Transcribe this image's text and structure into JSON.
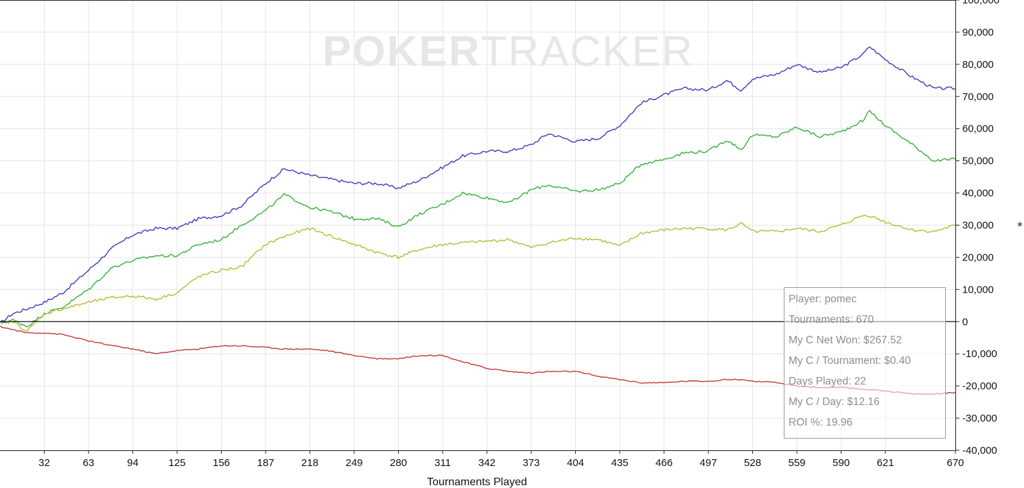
{
  "watermark": {
    "bold": "POKER",
    "light": "TRACKER"
  },
  "stats": [
    "Player: pomec",
    "Tournaments: 670",
    "My C Net Won: $267.52",
    "My C / Tournament: $0.40",
    "Days Played: 22",
    "My C / Day: $12.16",
    "ROI %: 19.96"
  ],
  "right_marker": "*",
  "chart_data": {
    "type": "line",
    "xlabel": "Tournaments Played",
    "ylabel": "",
    "xlim": [
      1,
      670
    ],
    "ylim": [
      -40000,
      100000
    ],
    "x_ticks": [
      32,
      63,
      94,
      125,
      156,
      187,
      218,
      249,
      280,
      311,
      342,
      373,
      404,
      435,
      466,
      497,
      528,
      559,
      590,
      621,
      670
    ],
    "y_ticks": [
      -40000,
      -30000,
      -20000,
      -10000,
      0,
      10000,
      20000,
      30000,
      40000,
      50000,
      60000,
      70000,
      80000,
      90000,
      100000
    ],
    "y_tick_labels": [
      "-40,000",
      "-30,000",
      "-20,000",
      "-10,000",
      "0",
      "10,000",
      "20,000",
      "30,000",
      "40,000",
      "50,000",
      "60,000",
      "70,000",
      "80,000",
      "90,000",
      "100,000"
    ],
    "grid": true,
    "zero_line": true,
    "series": [
      {
        "color": "#3a3ab8",
        "points": [
          [
            1,
            -500
          ],
          [
            10,
            2500
          ],
          [
            20,
            4000
          ],
          [
            32,
            6000
          ],
          [
            45,
            9000
          ],
          [
            63,
            16000
          ],
          [
            80,
            23000
          ],
          [
            94,
            27000
          ],
          [
            110,
            29000
          ],
          [
            125,
            29000
          ],
          [
            140,
            32000
          ],
          [
            156,
            33000
          ],
          [
            170,
            36000
          ],
          [
            187,
            43000
          ],
          [
            200,
            47500
          ],
          [
            218,
            45500
          ],
          [
            230,
            44500
          ],
          [
            249,
            43000
          ],
          [
            265,
            43000
          ],
          [
            280,
            41500
          ],
          [
            295,
            44000
          ],
          [
            311,
            48000
          ],
          [
            325,
            51500
          ],
          [
            342,
            53000
          ],
          [
            358,
            53000
          ],
          [
            373,
            55000
          ],
          [
            385,
            58500
          ],
          [
            404,
            56000
          ],
          [
            420,
            57000
          ],
          [
            435,
            61000
          ],
          [
            450,
            68000
          ],
          [
            466,
            70500
          ],
          [
            480,
            72500
          ],
          [
            497,
            72000
          ],
          [
            510,
            75000
          ],
          [
            520,
            72000
          ],
          [
            528,
            75500
          ],
          [
            545,
            77000
          ],
          [
            559,
            80000
          ],
          [
            575,
            77500
          ],
          [
            590,
            79000
          ],
          [
            605,
            83000
          ],
          [
            610,
            85500
          ],
          [
            621,
            81500
          ],
          [
            640,
            76000
          ],
          [
            655,
            72500
          ],
          [
            670,
            72500
          ]
        ]
      },
      {
        "color": "#34b034",
        "points": [
          [
            1,
            -500
          ],
          [
            10,
            500
          ],
          [
            20,
            -1500
          ],
          [
            32,
            2500
          ],
          [
            45,
            4500
          ],
          [
            63,
            10000
          ],
          [
            80,
            17000
          ],
          [
            94,
            19000
          ],
          [
            110,
            20500
          ],
          [
            125,
            20500
          ],
          [
            140,
            24000
          ],
          [
            156,
            25500
          ],
          [
            170,
            30000
          ],
          [
            187,
            34500
          ],
          [
            200,
            39500
          ],
          [
            218,
            35500
          ],
          [
            230,
            34500
          ],
          [
            249,
            32000
          ],
          [
            265,
            32000
          ],
          [
            280,
            29500
          ],
          [
            295,
            33500
          ],
          [
            311,
            36500
          ],
          [
            325,
            40000
          ],
          [
            342,
            38500
          ],
          [
            358,
            37000
          ],
          [
            373,
            41000
          ],
          [
            385,
            42500
          ],
          [
            404,
            40500
          ],
          [
            420,
            41000
          ],
          [
            435,
            43000
          ],
          [
            450,
            49000
          ],
          [
            466,
            50500
          ],
          [
            480,
            52500
          ],
          [
            497,
            53000
          ],
          [
            510,
            56500
          ],
          [
            520,
            53500
          ],
          [
            528,
            58000
          ],
          [
            545,
            57500
          ],
          [
            559,
            60500
          ],
          [
            575,
            57500
          ],
          [
            590,
            59000
          ],
          [
            605,
            62500
          ],
          [
            610,
            65500
          ],
          [
            621,
            61000
          ],
          [
            640,
            55000
          ],
          [
            655,
            50000
          ],
          [
            670,
            50500
          ]
        ]
      },
      {
        "color": "#b8b836",
        "points": [
          [
            1,
            -500
          ],
          [
            10,
            0
          ],
          [
            20,
            -3000
          ],
          [
            32,
            2500
          ],
          [
            45,
            4000
          ],
          [
            63,
            6000
          ],
          [
            80,
            7500
          ],
          [
            94,
            8000
          ],
          [
            110,
            7000
          ],
          [
            125,
            9000
          ],
          [
            140,
            14000
          ],
          [
            156,
            16000
          ],
          [
            170,
            17000
          ],
          [
            187,
            24000
          ],
          [
            200,
            26500
          ],
          [
            218,
            29000
          ],
          [
            230,
            27000
          ],
          [
            249,
            24000
          ],
          [
            265,
            21500
          ],
          [
            280,
            20000
          ],
          [
            295,
            22500
          ],
          [
            311,
            24000
          ],
          [
            325,
            24500
          ],
          [
            342,
            25000
          ],
          [
            358,
            25500
          ],
          [
            373,
            23000
          ],
          [
            385,
            24500
          ],
          [
            404,
            26000
          ],
          [
            420,
            25500
          ],
          [
            435,
            23500
          ],
          [
            450,
            27500
          ],
          [
            466,
            28500
          ],
          [
            480,
            29000
          ],
          [
            497,
            29000
          ],
          [
            510,
            28500
          ],
          [
            520,
            30500
          ],
          [
            528,
            28000
          ],
          [
            545,
            28000
          ],
          [
            559,
            29000
          ],
          [
            575,
            28000
          ],
          [
            590,
            30000
          ],
          [
            605,
            33000
          ],
          [
            610,
            33000
          ],
          [
            621,
            31000
          ],
          [
            640,
            28500
          ],
          [
            655,
            28000
          ],
          [
            670,
            30000
          ]
        ]
      },
      {
        "color": "#c03838",
        "points": [
          [
            1,
            -1500
          ],
          [
            10,
            -2500
          ],
          [
            20,
            -3500
          ],
          [
            32,
            -3500
          ],
          [
            45,
            -4000
          ],
          [
            63,
            -6000
          ],
          [
            80,
            -7500
          ],
          [
            94,
            -8500
          ],
          [
            110,
            -10000
          ],
          [
            125,
            -9000
          ],
          [
            140,
            -8500
          ],
          [
            156,
            -7500
          ],
          [
            170,
            -7500
          ],
          [
            187,
            -8000
          ],
          [
            200,
            -8500
          ],
          [
            218,
            -8500
          ],
          [
            230,
            -9000
          ],
          [
            249,
            -10500
          ],
          [
            265,
            -11500
          ],
          [
            280,
            -11500
          ],
          [
            295,
            -10500
          ],
          [
            311,
            -10500
          ],
          [
            325,
            -12500
          ],
          [
            342,
            -14500
          ],
          [
            358,
            -15500
          ],
          [
            373,
            -16000
          ],
          [
            385,
            -15500
          ],
          [
            404,
            -15500
          ],
          [
            420,
            -17000
          ],
          [
            435,
            -18000
          ],
          [
            450,
            -19000
          ],
          [
            466,
            -19000
          ],
          [
            480,
            -18500
          ],
          [
            497,
            -18500
          ],
          [
            510,
            -18000
          ],
          [
            520,
            -18000
          ],
          [
            528,
            -18500
          ],
          [
            545,
            -19000
          ],
          [
            559,
            -20000
          ],
          [
            575,
            -20500
          ],
          [
            590,
            -20500
          ],
          [
            605,
            -21000
          ],
          [
            621,
            -21500
          ],
          [
            640,
            -22500
          ],
          [
            655,
            -22500
          ],
          [
            670,
            -22000
          ]
        ]
      }
    ]
  }
}
